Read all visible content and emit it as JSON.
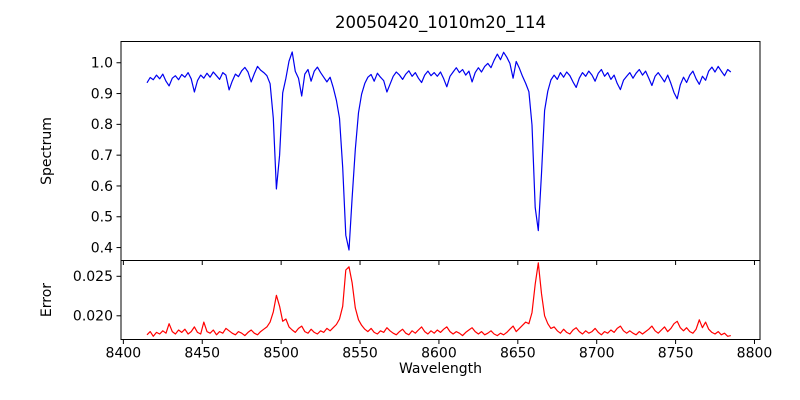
{
  "chart_data": {
    "type": "line",
    "title": "20050420_1010m20_114",
    "xlabel": "Wavelength",
    "grid": false,
    "legend": null,
    "xlim": [
      8398.5,
      8803.5
    ],
    "x_start": 8415,
    "x_step": 2,
    "x_ticks": {
      "values": [
        8400,
        8450,
        8500,
        8550,
        8600,
        8650,
        8700,
        8750,
        8800
      ],
      "labels": [
        "8400",
        "8450",
        "8500",
        "8550",
        "8600",
        "8650",
        "8700",
        "8750",
        "8800"
      ]
    },
    "panels": [
      {
        "name": "spectrum",
        "ylabel": "Spectrum",
        "line_color": "#0000f0",
        "ylim": [
          0.358,
          1.069
        ],
        "y_ticks": {
          "values": [
            0.4,
            0.5,
            0.6,
            0.7,
            0.8,
            0.9,
            1.0
          ],
          "labels": [
            "0.4",
            "0.5",
            "0.6",
            "0.7",
            "0.8",
            "0.9",
            "1.0"
          ]
        },
        "features": [
          "Ca II absorption lines near 8498, 8542, 8662"
        ],
        "values": [
          0.935,
          0.952,
          0.945,
          0.96,
          0.948,
          0.963,
          0.94,
          0.925,
          0.95,
          0.958,
          0.945,
          0.962,
          0.953,
          0.968,
          0.948,
          0.905,
          0.942,
          0.96,
          0.95,
          0.966,
          0.953,
          0.97,
          0.958,
          0.946,
          0.968,
          0.96,
          0.912,
          0.94,
          0.963,
          0.955,
          0.974,
          0.985,
          0.97,
          0.938,
          0.964,
          0.988,
          0.976,
          0.968,
          0.958,
          0.932,
          0.82,
          0.59,
          0.7,
          0.902,
          0.95,
          1.005,
          1.035,
          0.972,
          0.95,
          0.892,
          0.963,
          0.978,
          0.94,
          0.973,
          0.986,
          0.968,
          0.953,
          0.938,
          0.953,
          0.92,
          0.878,
          0.82,
          0.66,
          0.44,
          0.392,
          0.56,
          0.718,
          0.838,
          0.898,
          0.933,
          0.953,
          0.962,
          0.94,
          0.966,
          0.953,
          0.942,
          0.905,
          0.93,
          0.956,
          0.97,
          0.96,
          0.946,
          0.963,
          0.974,
          0.956,
          0.968,
          0.95,
          0.936,
          0.96,
          0.973,
          0.958,
          0.968,
          0.956,
          0.97,
          0.948,
          0.922,
          0.956,
          0.97,
          0.984,
          0.968,
          0.978,
          0.96,
          0.973,
          0.938,
          0.968,
          0.984,
          0.97,
          0.988,
          0.998,
          0.984,
          1.008,
          1.028,
          1.01,
          1.034,
          1.018,
          0.998,
          0.95,
          1.004,
          0.982,
          0.956,
          0.933,
          0.906,
          0.798,
          0.53,
          0.455,
          0.64,
          0.845,
          0.908,
          0.944,
          0.96,
          0.946,
          0.968,
          0.953,
          0.97,
          0.958,
          0.938,
          0.92,
          0.95,
          0.968,
          0.956,
          0.973,
          0.96,
          0.94,
          0.966,
          0.978,
          0.956,
          0.968,
          0.946,
          0.96,
          0.933,
          0.913,
          0.943,
          0.956,
          0.968,
          0.95,
          0.966,
          0.978,
          0.96,
          0.973,
          0.95,
          0.926,
          0.956,
          0.968,
          0.953,
          0.938,
          0.96,
          0.933,
          0.903,
          0.883,
          0.928,
          0.953,
          0.936,
          0.96,
          0.973,
          0.948,
          0.93,
          0.956,
          0.943,
          0.973,
          0.986,
          0.97,
          0.988,
          0.973,
          0.958,
          0.978,
          0.97
        ]
      },
      {
        "name": "error",
        "ylabel": "Error",
        "line_color": "#ff0000",
        "ylim": [
          0.017,
          0.027
        ],
        "y_ticks": {
          "values": [
            0.02,
            0.025
          ],
          "labels": [
            "0.020",
            "0.025"
          ]
        },
        "features": [
          "error spikes at the Ca II line positions"
        ],
        "values": [
          0.0176,
          0.018,
          0.0174,
          0.0179,
          0.0177,
          0.0181,
          0.0178,
          0.019,
          0.018,
          0.0177,
          0.0182,
          0.0179,
          0.0183,
          0.0177,
          0.018,
          0.0186,
          0.0179,
          0.0177,
          0.0192,
          0.018,
          0.0178,
          0.0182,
          0.0176,
          0.018,
          0.0178,
          0.0184,
          0.0181,
          0.0178,
          0.0176,
          0.018,
          0.0178,
          0.0175,
          0.0179,
          0.0182,
          0.0178,
          0.0176,
          0.018,
          0.0183,
          0.0186,
          0.0192,
          0.0205,
          0.0226,
          0.0212,
          0.0193,
          0.0196,
          0.0186,
          0.0182,
          0.0179,
          0.0184,
          0.0187,
          0.018,
          0.0178,
          0.0183,
          0.0179,
          0.0177,
          0.0181,
          0.0179,
          0.0184,
          0.0181,
          0.0185,
          0.0189,
          0.0196,
          0.0212,
          0.0258,
          0.0262,
          0.0242,
          0.021,
          0.0195,
          0.0188,
          0.0183,
          0.018,
          0.0184,
          0.0179,
          0.0177,
          0.0181,
          0.0179,
          0.0185,
          0.0181,
          0.0178,
          0.0176,
          0.018,
          0.0183,
          0.0178,
          0.0176,
          0.0181,
          0.0178,
          0.0182,
          0.0186,
          0.018,
          0.0177,
          0.0181,
          0.0178,
          0.0182,
          0.0179,
          0.0183,
          0.0186,
          0.018,
          0.0177,
          0.018,
          0.0178,
          0.0175,
          0.0179,
          0.0182,
          0.0185,
          0.018,
          0.0177,
          0.018,
          0.0176,
          0.0178,
          0.0181,
          0.0177,
          0.0175,
          0.0178,
          0.0176,
          0.0179,
          0.0183,
          0.0187,
          0.018,
          0.0184,
          0.0188,
          0.0192,
          0.019,
          0.0204,
          0.024,
          0.0267,
          0.0228,
          0.02,
          0.019,
          0.0184,
          0.0186,
          0.0181,
          0.0178,
          0.0183,
          0.0179,
          0.0177,
          0.0182,
          0.0185,
          0.018,
          0.0177,
          0.0181,
          0.0178,
          0.018,
          0.0184,
          0.0179,
          0.0176,
          0.018,
          0.0178,
          0.0182,
          0.0179,
          0.0184,
          0.0187,
          0.0181,
          0.0178,
          0.0181,
          0.0178,
          0.0176,
          0.018,
          0.0177,
          0.018,
          0.0183,
          0.0187,
          0.0181,
          0.0178,
          0.0182,
          0.0186,
          0.018,
          0.0184,
          0.019,
          0.0193,
          0.0185,
          0.0181,
          0.0185,
          0.018,
          0.0178,
          0.0183,
          0.0195,
          0.0185,
          0.0192,
          0.0183,
          0.0179,
          0.0177,
          0.018,
          0.0176,
          0.0178,
          0.0174,
          0.0175
        ]
      }
    ]
  }
}
